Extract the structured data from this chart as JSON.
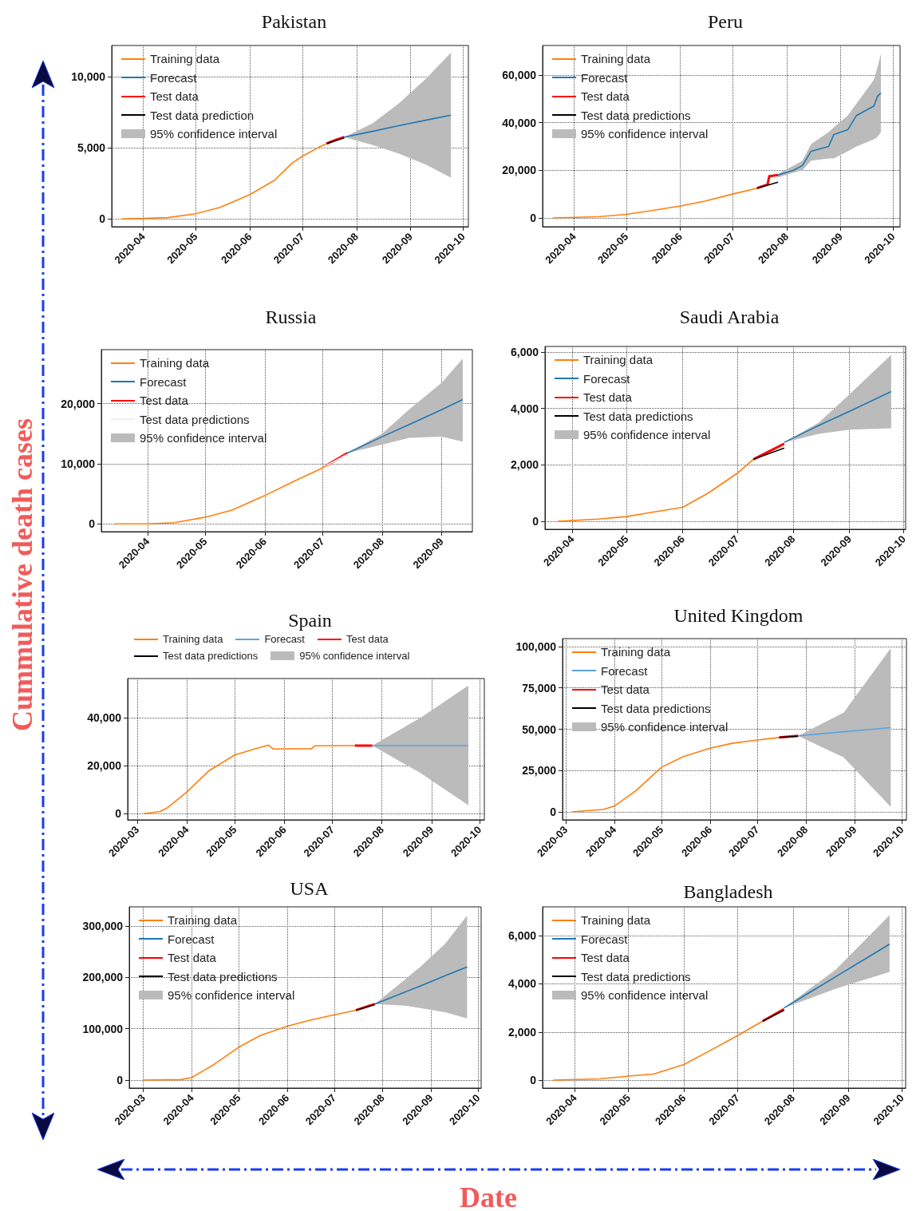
{
  "chart_data": [
    {
      "type": "line",
      "title": "Pakistan",
      "annotations": [
        "95% confidence interval"
      ],
      "legend": "top left",
      "grid": true,
      "marker": "none",
      "xlim": [
        "2020-03-14",
        "2020-10-04"
      ],
      "xticks": [
        "2020-04",
        "2020-05",
        "2020-06",
        "2020-07",
        "2020-08",
        "2020-09",
        "2020-10"
      ],
      "ylim": [
        -560,
        12200
      ],
      "yticks": [
        {
          "value": 0,
          "label": "0"
        },
        {
          "value": 5000,
          "label": "5,000"
        },
        {
          "value": 10000,
          "label": "10,000"
        }
      ],
      "series": [
        {
          "name": "Training data",
          "color": "#ff7f0e",
          "x": [
            "2020-03-20",
            "2020-04-01",
            "2020-04-15",
            "2020-05-01",
            "2020-05-15",
            "2020-06-01",
            "2020-06-15",
            "2020-06-25",
            "2020-07-01",
            "2020-07-10",
            "2020-07-15"
          ],
          "values": [
            0,
            30,
            80,
            350,
            800,
            1700,
            2700,
            3900,
            4400,
            5000,
            5300
          ]
        },
        {
          "name": "Forecast",
          "color": "#1f77b4",
          "x": [
            "2020-07-25",
            "2020-08-10",
            "2020-08-25",
            "2020-09-10",
            "2020-09-24"
          ],
          "values": [
            5750,
            6150,
            6550,
            6950,
            7300
          ],
          "lower": [
            5750,
            5200,
            4600,
            3800,
            2900
          ],
          "upper": [
            5750,
            6700,
            8100,
            9900,
            11700
          ]
        },
        {
          "name": "Test data",
          "color": "#ff0000",
          "x": [
            "2020-07-15",
            "2020-07-20",
            "2020-07-25"
          ],
          "values": [
            5300,
            5550,
            5750
          ]
        },
        {
          "name": "Test data prediction",
          "color": "#000000",
          "x": [
            "2020-07-15",
            "2020-07-25"
          ],
          "values": [
            5300,
            5700
          ]
        }
      ]
    },
    {
      "type": "line",
      "title": "Peru",
      "annotations": [
        "95% confidence interval"
      ],
      "legend": "top left",
      "grid": true,
      "marker": "none",
      "xlim": [
        "2020-03-14",
        "2020-10-05"
      ],
      "xticks": [
        "2020-04",
        "2020-05",
        "2020-06",
        "2020-07",
        "2020-08",
        "2020-09",
        "2020-10"
      ],
      "ylim": [
        -3700,
        72400
      ],
      "yticks": [
        {
          "value": 0,
          "label": "0"
        },
        {
          "value": 20000,
          "label": "20,000"
        },
        {
          "value": 40000,
          "label": "40,000"
        },
        {
          "value": 60000,
          "label": "60,000"
        }
      ],
      "series": [
        {
          "name": "Training data",
          "color": "#ff7f0e",
          "x": [
            "2020-03-20",
            "2020-04-15",
            "2020-05-01",
            "2020-05-15",
            "2020-06-01",
            "2020-06-15",
            "2020-07-01",
            "2020-07-15"
          ],
          "values": [
            0,
            500,
            1500,
            3000,
            5000,
            7000,
            10000,
            12500
          ]
        },
        {
          "name": "Forecast",
          "color": "#1f77b4",
          "x": [
            "2020-07-27",
            "2020-08-05",
            "2020-08-10",
            "2020-08-15",
            "2020-08-25",
            "2020-08-28",
            "2020-09-05",
            "2020-09-10",
            "2020-09-20",
            "2020-09-22",
            "2020-09-24"
          ],
          "values": [
            18000,
            20000,
            22000,
            28000,
            30000,
            35000,
            37000,
            43000,
            47000,
            51000,
            52500
          ],
          "lower": [
            17000,
            19000,
            20000,
            24000,
            25000,
            25000,
            28000,
            30000,
            33000,
            34000,
            36000
          ],
          "upper": [
            18500,
            22000,
            24000,
            31000,
            36000,
            38000,
            43000,
            48000,
            58000,
            63000,
            69000
          ]
        },
        {
          "name": "Test data",
          "color": "#ff0000",
          "x": [
            "2020-07-15",
            "2020-07-21",
            "2020-07-22",
            "2020-07-27"
          ],
          "values": [
            12500,
            14000,
            17500,
            18000
          ]
        },
        {
          "name": "Test data predictions",
          "color": "#000000",
          "x": [
            "2020-07-15",
            "2020-07-27"
          ],
          "values": [
            12500,
            15000
          ]
        }
      ]
    },
    {
      "type": "line",
      "title": "Russia",
      "ylabel": "Cummulative death cases",
      "annotations": [
        "95% confidence interval"
      ],
      "legend": "top left",
      "grid": true,
      "marker": "none",
      "xlim": [
        "2020-03-08",
        "2020-09-17"
      ],
      "xticks": [
        "2020-04",
        "2020-05",
        "2020-06",
        "2020-07",
        "2020-08",
        "2020-09"
      ],
      "ylim": [
        -1300,
        29000
      ],
      "yticks": [
        {
          "value": 0,
          "label": "0"
        },
        {
          "value": 10000,
          "label": "10,000"
        },
        {
          "value": 20000,
          "label": "20,000"
        }
      ],
      "series": [
        {
          "name": "Training data",
          "color": "#ff7f0e",
          "x": [
            "2020-03-15",
            "2020-04-01",
            "2020-04-15",
            "2020-05-01",
            "2020-05-15",
            "2020-06-01",
            "2020-06-15",
            "2020-07-01",
            "2020-07-03"
          ],
          "values": [
            0,
            0,
            200,
            1100,
            2300,
            4700,
            6900,
            9300,
            9700
          ]
        },
        {
          "name": "Forecast",
          "color": "#1f77b4",
          "x": [
            "2020-07-14",
            "2020-08-01",
            "2020-08-15",
            "2020-09-01",
            "2020-09-12"
          ],
          "values": [
            11800,
            14500,
            16500,
            19000,
            20700
          ],
          "lower": [
            11800,
            13200,
            14300,
            14500,
            13700
          ],
          "upper": [
            11800,
            15000,
            19000,
            23500,
            27500
          ]
        },
        {
          "name": "Test data",
          "color": "#ff0000",
          "x": [
            "2020-07-03",
            "2020-07-14"
          ],
          "values": [
            9700,
            11800
          ]
        },
        {
          "name": "Test data predictions",
          "color": "#eeeeee",
          "x": [
            "2020-07-03",
            "2020-07-14"
          ],
          "values": [
            9700,
            11600
          ]
        }
      ]
    },
    {
      "type": "line",
      "title": "Saudi Arabia",
      "annotations": [
        "95% confidence interval"
      ],
      "legend": "top left",
      "grid": true,
      "marker": "none",
      "xlim": [
        "2020-03-17",
        "2020-10-02"
      ],
      "xticks": [
        "2020-04",
        "2020-05",
        "2020-06",
        "2020-07",
        "2020-08",
        "2020-09",
        "2020-10"
      ],
      "ylim": [
        -280,
        6200
      ],
      "yticks": [
        {
          "value": 0,
          "label": "0"
        },
        {
          "value": 2000,
          "label": "2,000"
        },
        {
          "value": 4000,
          "label": "4,000"
        },
        {
          "value": 6000,
          "label": "6,000"
        }
      ],
      "series": [
        {
          "name": "Training data",
          "color": "#ff7f0e",
          "x": [
            "2020-03-24",
            "2020-04-15",
            "2020-05-01",
            "2020-05-15",
            "2020-06-01",
            "2020-06-15",
            "2020-07-01",
            "2020-07-10"
          ],
          "values": [
            0,
            80,
            170,
            320,
            500,
            1000,
            1700,
            2200
          ]
        },
        {
          "name": "Forecast",
          "color": "#1f77b4",
          "x": [
            "2020-07-27",
            "2020-08-15",
            "2020-09-01",
            "2020-09-24"
          ],
          "values": [
            2800,
            3400,
            3900,
            4600
          ],
          "lower": [
            2800,
            3100,
            3250,
            3300
          ],
          "upper": [
            2800,
            3500,
            4500,
            5900
          ]
        },
        {
          "name": "Test data",
          "color": "#ff0000",
          "x": [
            "2020-07-10",
            "2020-07-27"
          ],
          "values": [
            2200,
            2750
          ]
        },
        {
          "name": "Test data predictions",
          "color": "#000000",
          "x": [
            "2020-07-10",
            "2020-07-27"
          ],
          "values": [
            2200,
            2600
          ]
        }
      ]
    },
    {
      "type": "line",
      "title": "Spain",
      "annotations": [
        "95% confidence interval"
      ],
      "legend": "top",
      "grid": true,
      "marker": "none",
      "xlim": [
        "2020-02-24",
        "2020-10-04"
      ],
      "xticks": [
        "2020-03",
        "2020-04",
        "2020-05",
        "2020-06",
        "2020-07",
        "2020-08",
        "2020-09",
        "2020-10"
      ],
      "ylim": [
        -2600,
        56400
      ],
      "yticks": [
        {
          "value": 0,
          "label": "0"
        },
        {
          "value": 20000,
          "label": "20,000"
        },
        {
          "value": 40000,
          "label": "40,000"
        }
      ],
      "series": [
        {
          "name": "Training data",
          "color": "#ff7f0e",
          "x": [
            "2020-03-05",
            "2020-03-15",
            "2020-03-20",
            "2020-04-01",
            "2020-04-15",
            "2020-05-01",
            "2020-05-15",
            "2020-05-22",
            "2020-05-25",
            "2020-06-18",
            "2020-06-20",
            "2020-07-15"
          ],
          "values": [
            0,
            800,
            2500,
            9000,
            18000,
            24500,
            27300,
            28600,
            27000,
            27100,
            28300,
            28400
          ]
        },
        {
          "name": "Forecast",
          "color": "#5fa2dd",
          "x": [
            "2020-07-26",
            "2020-08-25",
            "2020-09-24"
          ],
          "values": [
            28400,
            28400,
            28400
          ],
          "lower": [
            28400,
            17000,
            3500
          ],
          "upper": [
            28400,
            40000,
            53500
          ]
        },
        {
          "name": "Test data",
          "color": "#ff0000",
          "x": [
            "2020-07-15",
            "2020-07-26"
          ],
          "values": [
            28400,
            28400
          ]
        },
        {
          "name": "Test data predictions",
          "color": "#000000"
        }
      ]
    },
    {
      "type": "line",
      "title": "United Kingdom",
      "annotations": [
        "95% confidence interval"
      ],
      "legend": "top left",
      "grid": true,
      "marker": "none",
      "xlim": [
        "2020-02-28",
        "2020-10-04"
      ],
      "xticks": [
        "2020-03",
        "2020-04",
        "2020-05",
        "2020-06",
        "2020-07",
        "2020-08",
        "2020-09",
        "2020-10"
      ],
      "ylim": [
        -4800,
        104800
      ],
      "yticks": [
        {
          "value": 0,
          "label": "0"
        },
        {
          "value": 25000,
          "label": "25,000"
        },
        {
          "value": 50000,
          "label": "50,000"
        },
        {
          "value": 75000,
          "label": "75,000"
        },
        {
          "value": 100000,
          "label": "100,000"
        }
      ],
      "series": [
        {
          "name": "Training data",
          "color": "#ff7f0e",
          "x": [
            "2020-03-05",
            "2020-03-25",
            "2020-04-01",
            "2020-04-15",
            "2020-05-01",
            "2020-05-15",
            "2020-06-01",
            "2020-06-15",
            "2020-07-01",
            "2020-07-15"
          ],
          "values": [
            0,
            1500,
            3500,
            13000,
            27000,
            33500,
            38500,
            41500,
            43500,
            45000
          ]
        },
        {
          "name": "Forecast",
          "color": "#5fa2dd",
          "x": [
            "2020-07-27",
            "2020-08-25",
            "2020-09-24"
          ],
          "values": [
            46000,
            48500,
            51000
          ],
          "lower": [
            46000,
            33000,
            3000
          ],
          "upper": [
            46000,
            60000,
            99000
          ]
        },
        {
          "name": "Test data",
          "color": "#ff0000",
          "x": [
            "2020-07-15",
            "2020-07-27"
          ],
          "values": [
            45000,
            46000
          ]
        },
        {
          "name": "Test data predictions",
          "color": "#000000",
          "x": [
            "2020-07-15",
            "2020-07-27"
          ],
          "values": [
            45000,
            45800
          ]
        }
      ]
    },
    {
      "type": "line",
      "title": "USA",
      "xlabel": "Date",
      "annotations": [
        "95% confidence interval"
      ],
      "legend": "top left",
      "grid": true,
      "marker": "none",
      "xlim": [
        "2020-02-21",
        "2020-10-03"
      ],
      "xticks": [
        "2020-03",
        "2020-04",
        "2020-05",
        "2020-06",
        "2020-07",
        "2020-08",
        "2020-09",
        "2020-10"
      ],
      "ylim": [
        -15500,
        337000
      ],
      "yticks": [
        {
          "value": 0,
          "label": "0"
        },
        {
          "value": 100000,
          "label": "100,000"
        },
        {
          "value": 200000,
          "label": "200,000"
        },
        {
          "value": 300000,
          "label": "300,000"
        }
      ],
      "series": [
        {
          "name": "Training data",
          "color": "#ff7f0e",
          "x": [
            "2020-03-01",
            "2020-03-25",
            "2020-04-01",
            "2020-04-15",
            "2020-05-01",
            "2020-05-15",
            "2020-06-01",
            "2020-06-15",
            "2020-07-01",
            "2020-07-15"
          ],
          "values": [
            0,
            1000,
            5000,
            30000,
            64000,
            87000,
            105000,
            116000,
            127000,
            136000
          ]
        },
        {
          "name": "Forecast",
          "color": "#1f77b4",
          "x": [
            "2020-07-27",
            "2020-08-15",
            "2020-08-25",
            "2020-09-10",
            "2020-09-24"
          ],
          "values": [
            148000,
            171000,
            183000,
            203000,
            220000
          ],
          "lower": [
            148000,
            145000,
            140000,
            132000,
            120000
          ],
          "upper": [
            148000,
            195000,
            220000,
            265000,
            320000
          ]
        },
        {
          "name": "Test data",
          "color": "#ff0000",
          "x": [
            "2020-07-15",
            "2020-07-27"
          ],
          "values": [
            136000,
            148000
          ]
        },
        {
          "name": "Test data predictions",
          "color": "#000000",
          "x": [
            "2020-07-15",
            "2020-07-27"
          ],
          "values": [
            136000,
            147000
          ]
        }
      ]
    },
    {
      "type": "line",
      "title": "Bangladesh",
      "annotations": [
        "95% confidence interval"
      ],
      "legend": "top left",
      "grid": true,
      "marker": "none",
      "xlim": [
        "2020-03-14",
        "2020-10-03"
      ],
      "xticks": [
        "2020-04",
        "2020-05",
        "2020-06",
        "2020-07",
        "2020-08",
        "2020-09",
        "2020-10"
      ],
      "ylim": [
        -330,
        7200
      ],
      "yticks": [
        {
          "value": 0,
          "label": "0"
        },
        {
          "value": 2000,
          "label": "2,000"
        },
        {
          "value": 4000,
          "label": "4,000"
        },
        {
          "value": 6000,
          "label": "6,000"
        }
      ],
      "series": [
        {
          "name": "Training data",
          "color": "#ff7f0e",
          "x": [
            "2020-03-20",
            "2020-04-15",
            "2020-05-01",
            "2020-05-15",
            "2020-06-01",
            "2020-06-15",
            "2020-07-01",
            "2020-07-15"
          ],
          "values": [
            0,
            50,
            170,
            250,
            650,
            1200,
            1850,
            2450
          ]
        },
        {
          "name": "Forecast",
          "color": "#1f77b4",
          "x": [
            "2020-07-27",
            "2020-08-25",
            "2020-09-24"
          ],
          "values": [
            3000,
            4300,
            5650
          ],
          "lower": [
            3000,
            3800,
            4500
          ],
          "upper": [
            3000,
            4600,
            6850
          ]
        },
        {
          "name": "Test data",
          "color": "#ff0000",
          "x": [
            "2020-07-15",
            "2020-07-27"
          ],
          "values": [
            2450,
            2950
          ]
        },
        {
          "name": "Test data predictions",
          "color": "#000000",
          "x": [
            "2020-07-15",
            "2020-07-27"
          ],
          "values": [
            2450,
            2900
          ]
        }
      ]
    }
  ]
}
